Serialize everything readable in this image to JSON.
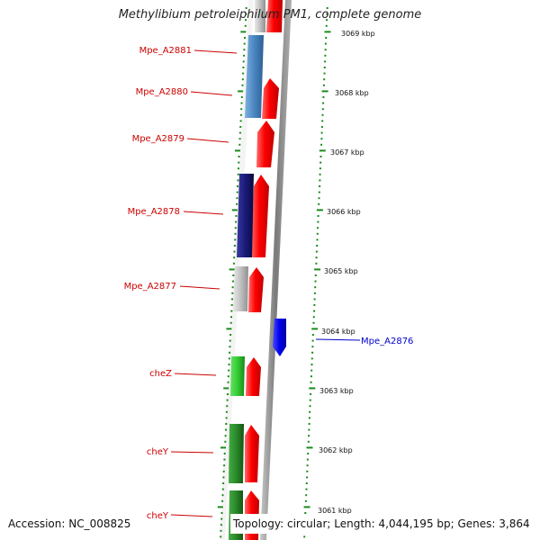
{
  "title": "Methylibium petroleiphilum PM1, complete genome",
  "footer": {
    "accession": "Accession: NC_008825",
    "summary": "Topology: circular; Length: 4,044,195 bp; Genes: 3,864"
  },
  "colors": {
    "backbone": "#8a8a8a",
    "forward_strand": "#ff0000",
    "label_red": "#cc0000",
    "label_blue": "#0000cc",
    "tick": "#1a8a1a",
    "steelblue_feature": "#4a86c0",
    "navy_feature": "#1a1a7a",
    "gray_feature": "#c0c0c0",
    "lightgreen_feature": "#33cc33",
    "green_feature": "#2a8a2a",
    "blue_feature": "#0000ee"
  },
  "scale": {
    "labels": [
      "3069 kbp",
      "3068 kbp",
      "3067 kbp",
      "3066 kbp",
      "3065 kbp",
      "3064 kbp",
      "3063 kbp",
      "3062 kbp",
      "3061 kbp"
    ]
  },
  "features": [
    {
      "label": "Mpe_A2881",
      "color": "steelblue",
      "strand": "left"
    },
    {
      "label": "Mpe_A2880",
      "color": "steelblue",
      "strand": "left"
    },
    {
      "label": "Mpe_A2879",
      "color": "none",
      "strand": "left"
    },
    {
      "label": "Mpe_A2878",
      "color": "navy",
      "strand": "left"
    },
    {
      "label": "Mpe_A2877",
      "color": "gray",
      "strand": "left"
    },
    {
      "label": "Mpe_A2876",
      "color": "blue",
      "strand": "right"
    },
    {
      "label": "cheZ",
      "color": "lightgreen",
      "strand": "left"
    },
    {
      "label": "cheY",
      "color": "green",
      "strand": "left"
    },
    {
      "label": "cheY",
      "color": "green",
      "strand": "left"
    }
  ]
}
